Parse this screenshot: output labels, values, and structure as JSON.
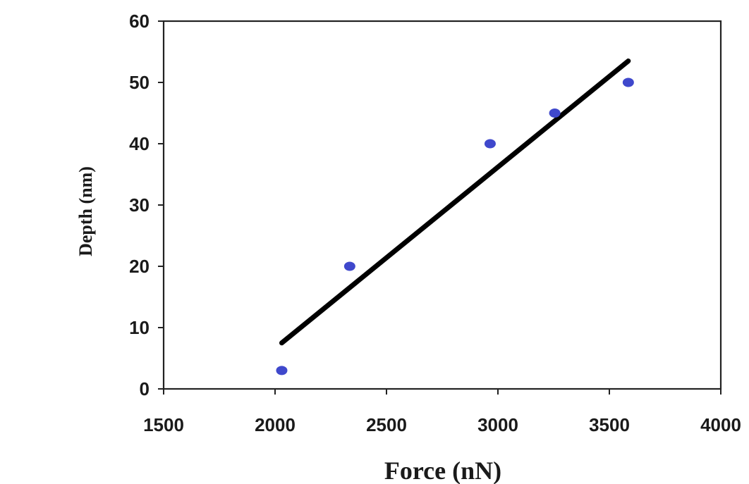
{
  "chart_data": {
    "type": "scatter",
    "title": "",
    "xlabel": "Force (nN)",
    "ylabel": "Depth (nm)",
    "xlim": [
      1500,
      4000
    ],
    "ylim": [
      0,
      60
    ],
    "xticks": [
      "1500",
      "2000",
      "2500",
      "3000",
      "3500",
      "4000"
    ],
    "yticks": [
      "0",
      "10",
      "20",
      "30",
      "40",
      "50",
      "60"
    ],
    "grid": false,
    "legend": "none",
    "series": [
      {
        "type": "scatter",
        "color": "#3f48cc",
        "x": [
          2030,
          2335,
          2965,
          3255,
          3585
        ],
        "y": [
          3,
          20,
          40,
          45,
          50
        ]
      },
      {
        "type": "line",
        "color": "#000000",
        "x": [
          2030,
          3585
        ],
        "y": [
          7.5,
          53.5
        ]
      }
    ]
  }
}
